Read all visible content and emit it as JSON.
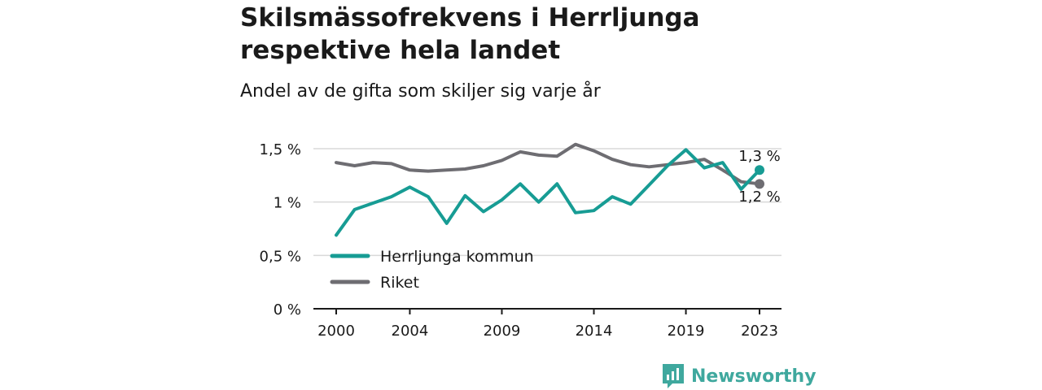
{
  "title": "Skilsmässofrekvens i Herrljunga respektive hela landet",
  "subtitle": "Andel av de gifta som skiljer sig varje år",
  "brand": {
    "name": "Newsworthy",
    "logo_icon": "newsworthy-logo-icon",
    "color": "#3fa89e"
  },
  "chart_data": {
    "type": "line",
    "title": "Skilsmässofrekvens i Herrljunga respektive hela landet",
    "subtitle": "Andel av de gifta som skiljer sig varje år",
    "x": [
      2000,
      2001,
      2002,
      2003,
      2004,
      2005,
      2006,
      2007,
      2008,
      2009,
      2010,
      2011,
      2012,
      2013,
      2014,
      2015,
      2016,
      2017,
      2018,
      2019,
      2020,
      2021,
      2022,
      2023
    ],
    "x_ticks": [
      "2000",
      "2004",
      "2009",
      "2014",
      "2019",
      "2023"
    ],
    "x_tick_values": [
      2000,
      2004,
      2009,
      2014,
      2019,
      2023
    ],
    "y_ticks": [
      "0 %",
      "0,5 %",
      "1 %",
      "1,5 %"
    ],
    "y_tick_values": [
      0,
      0.5,
      1,
      1.5
    ],
    "ylim": [
      0,
      1.5
    ],
    "xlim": [
      2000,
      2023
    ],
    "grid": true,
    "legend_position": "bottom-left",
    "series": [
      {
        "name": "Herrljunga kommun",
        "color": "#179c94",
        "values": [
          0.69,
          0.93,
          0.99,
          1.05,
          1.14,
          1.05,
          0.8,
          1.06,
          0.91,
          1.02,
          1.17,
          1.0,
          1.17,
          0.9,
          0.92,
          1.05,
          0.98,
          1.16,
          1.34,
          1.49,
          1.32,
          1.37,
          1.12,
          1.3
        ],
        "end_label": "1,3 %"
      },
      {
        "name": "Riket",
        "color": "#6e6d72",
        "values": [
          1.37,
          1.34,
          1.37,
          1.36,
          1.3,
          1.29,
          1.3,
          1.31,
          1.34,
          1.39,
          1.47,
          1.44,
          1.43,
          1.54,
          1.48,
          1.4,
          1.35,
          1.33,
          1.35,
          1.37,
          1.4,
          1.3,
          1.19,
          1.17
        ],
        "end_label": "1,2 %"
      }
    ]
  }
}
